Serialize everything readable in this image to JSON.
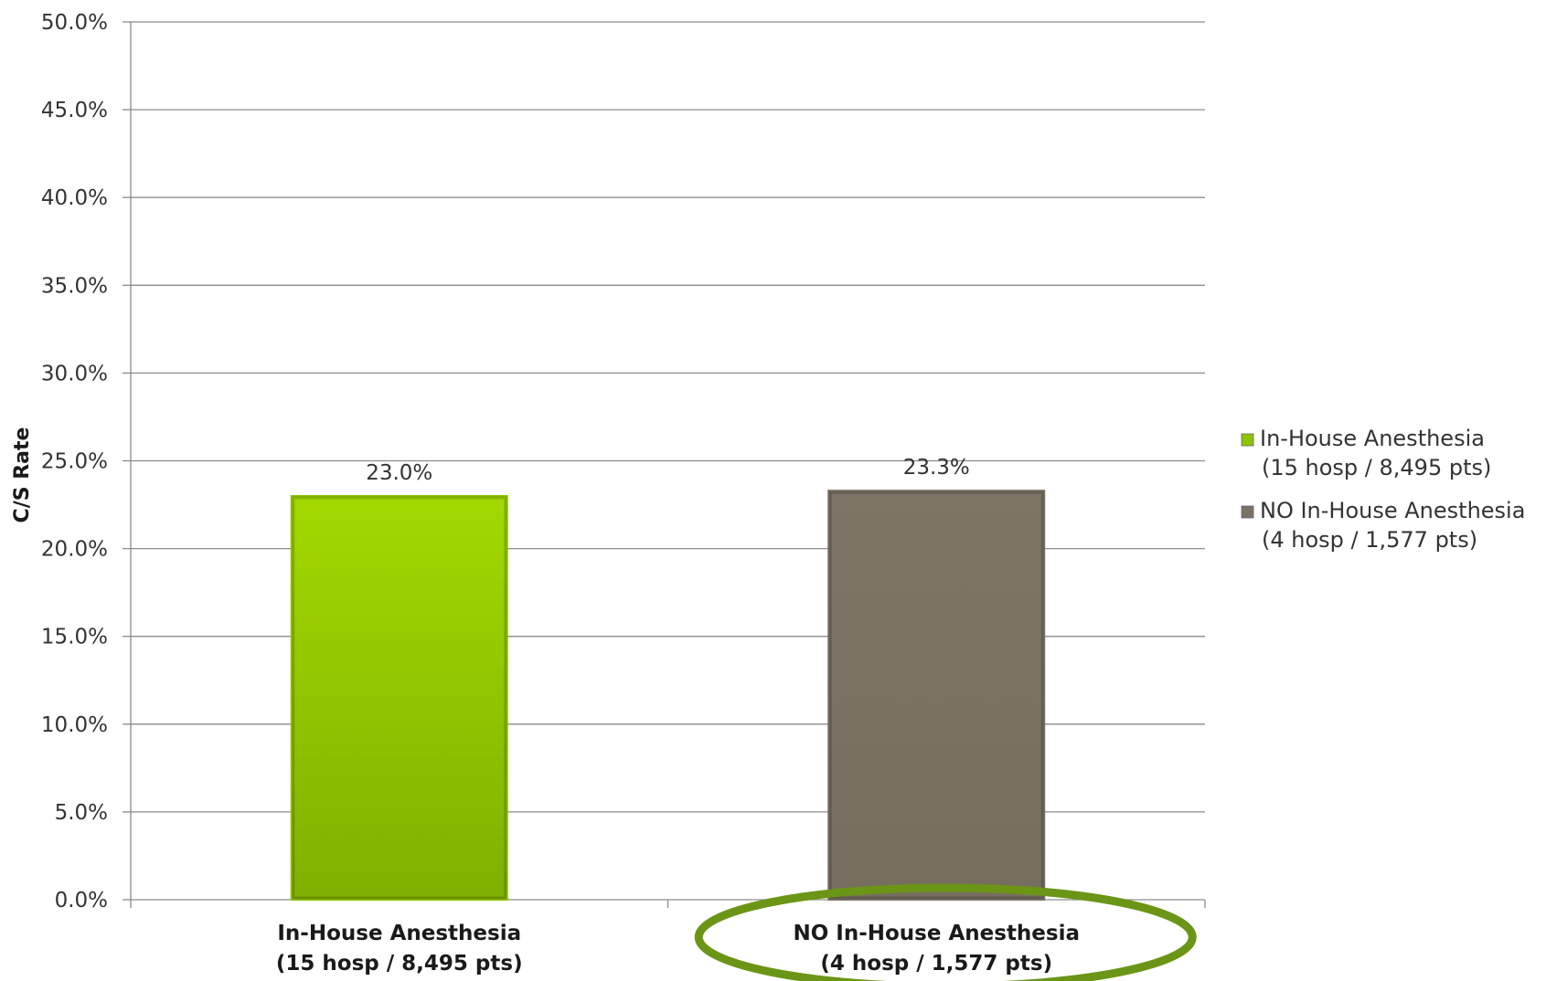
{
  "chart_data": {
    "type": "bar",
    "title": "",
    "xlabel": "",
    "ylabel": "C/S Rate",
    "ylim": [
      0,
      50
    ],
    "ytick_step": 5,
    "ytick_labels": [
      "0.0%",
      "5.0%",
      "10.0%",
      "15.0%",
      "20.0%",
      "25.0%",
      "30.0%",
      "35.0%",
      "40.0%",
      "45.0%",
      "50.0%"
    ],
    "grid": true,
    "legend_position": "right",
    "categories": [
      {
        "line1": "In-House Anesthesia",
        "line2": "(15 hosp / 8,495 pts)"
      },
      {
        "line1": "NO In-House Anesthesia",
        "line2": "(4 hosp / 1,577 pts)"
      }
    ],
    "values": [
      23.0,
      23.3
    ],
    "value_labels": [
      "23.0%",
      "23.3%"
    ],
    "colors": [
      "#8fc300",
      "#7b7263"
    ],
    "highlight_color": "#6b9516",
    "highlighted_category_index": 1,
    "legend": [
      {
        "line1": "In-House Anesthesia",
        "line2": "(15 hosp / 8,495 pts)",
        "color": "#8fc300"
      },
      {
        "line1": "NO In-House Anesthesia",
        "line2": "(4 hosp / 1,577 pts)",
        "color": "#7b7263"
      }
    ]
  }
}
